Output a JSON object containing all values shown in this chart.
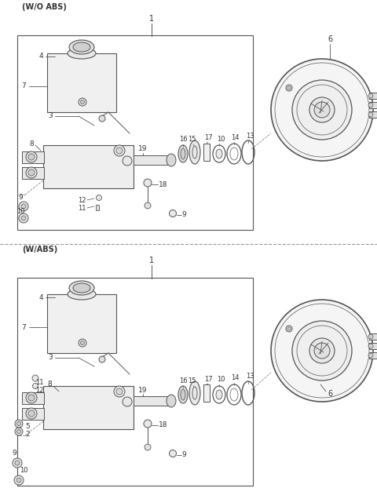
{
  "title_top": "(W/O ABS)",
  "title_bottom": "(W/ABS)",
  "bg_color": "#ffffff",
  "lc": "#555555",
  "tc": "#333333",
  "figsize": [
    4.8,
    6.36
  ],
  "dpi": 100
}
